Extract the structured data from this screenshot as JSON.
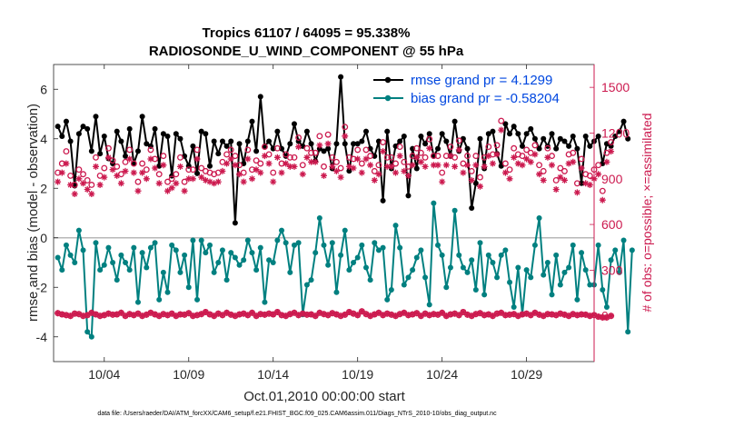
{
  "chart_data": {
    "type": "line",
    "title": "Tropics 61107 / 64095 = 95.338%",
    "subtitle": "RADIOSONDE_U_WIND_COMPONENT @ 55 hPa",
    "xlabel": "Oct.01,2010 00:00:00 start",
    "ylabel": "rmse and bias (model - observation)",
    "ylabel_right": "# of obs: o=possible; ×=assimilated",
    "footnote": "data file: /Users/raeder/DAI/ATM_forcXX/CAM6_setup/f.e21.FHIST_BGC.f09_025.CAM6assim.011/Diags_NTrS_2010-10/obs_diag_output.nc",
    "xlim": [
      1,
      33
    ],
    "ylim": [
      -5,
      7
    ],
    "ylim_right": [
      -300,
      1650
    ],
    "x_ticks": [
      4,
      9,
      14,
      19,
      24,
      29
    ],
    "x_tick_labels": [
      "10/04",
      "10/09",
      "10/14",
      "10/19",
      "10/24",
      "10/29"
    ],
    "y_ticks": [
      -4,
      -2,
      0,
      2,
      4,
      6
    ],
    "y_tick_labels": [
      "-4",
      "-2",
      "0",
      "2",
      "4",
      "6"
    ],
    "y_ticks_right": [
      0,
      300,
      600,
      900,
      1200,
      1500
    ],
    "y_tick_labels_right": [
      "0",
      "300",
      "600",
      "900",
      "1200",
      "1500"
    ],
    "x_start": 1.25,
    "x_step": 0.25,
    "legend": [
      {
        "name": "rmse grand pr = 4.1299",
        "color": "#000000"
      },
      {
        "name": "bias grand pr = -0.58204",
        "color": "#008080"
      }
    ],
    "series": [
      {
        "name": "rmse",
        "color": "#000000",
        "values": [
          4.5,
          4.1,
          4.7,
          3.9,
          2.1,
          4.2,
          4.5,
          4.4,
          3.5,
          4.9,
          3.4,
          4.1,
          3.2,
          3.0,
          4.3,
          3.9,
          3.3,
          4.4,
          3.0,
          3.5,
          4.9,
          3.8,
          3.7,
          4.4,
          2.9,
          4.2,
          4.1,
          2.5,
          4.2,
          4.0,
          3.3,
          2.9,
          3.7,
          2.6,
          4.3,
          4.2,
          2.9,
          3.9,
          3.4,
          3.9,
          3.7,
          3.9,
          0.6,
          3.8,
          3.0,
          3.9,
          4.7,
          3.5,
          5.7,
          3.7,
          3.9,
          3.6,
          4.3,
          3.6,
          3.3,
          3.8,
          4.6,
          3.9,
          3.7,
          4.3,
          3.8,
          3.1,
          3.6,
          3.5,
          3.6,
          2.8,
          3.8,
          6.5,
          3.8,
          2.7,
          3.8,
          3.8,
          3.9,
          4.3,
          3.6,
          3.3,
          3.9,
          1.5,
          4.3,
          2.8,
          3.7,
          3.9,
          4.1,
          1.7,
          3.6,
          2.8,
          4.1,
          3.8,
          4.2,
          3.3,
          3.6,
          4.2,
          3.9,
          3.3,
          4.7,
          3.5,
          4.0,
          3.6,
          1.2,
          2.2,
          4.0,
          2.8,
          4.2,
          4.3,
          3.4,
          2.9,
          4.6,
          4.2,
          4.5,
          4.2,
          3.7,
          4.2,
          4.4,
          4.0,
          3.6,
          4.0,
          3.7,
          4.2,
          3.6,
          4.0,
          3.9,
          3.7,
          4.1,
          3.6,
          2.2,
          4.1,
          3.7,
          3.9,
          4.1,
          3.0,
          3.8,
          3.7,
          4.1,
          4.3,
          4.7,
          4.0
        ]
      },
      {
        "name": "bias",
        "color": "#008080",
        "values": [
          -0.8,
          -1.3,
          -0.3,
          -0.7,
          -1.0,
          0.3,
          -0.5,
          -3.8,
          -4.0,
          -0.2,
          -1.3,
          -1.1,
          -0.4,
          -1.0,
          -1.7,
          -0.7,
          -1.0,
          -1.3,
          -0.4,
          -2.6,
          -0.6,
          -1.2,
          -0.4,
          -0.2,
          -2.5,
          -1.4,
          -2.2,
          -0.3,
          -0.5,
          -1.4,
          -0.7,
          -2.0,
          -0.1,
          -2.5,
          -0.1,
          -0.6,
          -0.3,
          -1.4,
          -1.0,
          -0.5,
          -1.7,
          -0.6,
          -0.8,
          -1.1,
          -0.9,
          -0.1,
          -0.6,
          -1.3,
          -0.4,
          -2.6,
          -0.9,
          -1.0,
          -0.1,
          0.3,
          -0.2,
          -1.4,
          -0.3,
          -0.2,
          -3.1,
          -1.9,
          -1.7,
          -0.6,
          0.8,
          -0.3,
          -1.1,
          -0.2,
          -2.2,
          -0.7,
          0.3,
          -1.3,
          -1.0,
          -0.8,
          -0.3,
          -1.2,
          -1.7,
          -0.2,
          -0.5,
          -0.4,
          -2.5,
          -2.1,
          0.5,
          -0.4,
          -1.9,
          -1.6,
          -1.3,
          -0.8,
          -0.5,
          -1.6,
          -2.7,
          1.4,
          -0.3,
          -0.7,
          -2.0,
          -1.2,
          1.1,
          -0.7,
          -1.2,
          -1.4,
          -0.9,
          -2.1,
          -0.2,
          -2.3,
          -0.7,
          -1.0,
          -1.6,
          -0.7,
          -0.5,
          -1.8,
          -2.8,
          -1.2,
          -3.1,
          -1.3,
          -1.6,
          -0.3,
          0.8,
          -1.5,
          -1.0,
          -2.3,
          -0.7,
          -1.9,
          -1.4,
          -1.2,
          -0.3,
          -2.5,
          -0.6,
          -1.3,
          -1.9,
          -1.9,
          -0.3,
          -2.1,
          -2.8,
          -0.9,
          -0.5,
          -1.4,
          -0.1,
          -3.8,
          -0.5
        ]
      },
      {
        "name": "obs possible",
        "color": "#cc1a4f",
        "marker": "o",
        "values": [
          940,
          1000,
          1080,
          920,
          860,
          960,
          930,
          890,
          860,
          1040,
          920,
          970,
          1100,
          1020,
          980,
          930,
          1010,
          1090,
          1000,
          880,
          1000,
          960,
          1090,
          1030,
          930,
          1050,
          880,
          900,
          930,
          1040,
          880,
          960,
          960,
          1090,
          970,
          950,
          940,
          930,
          940,
          1010,
          1060,
          1090,
          1050,
          990,
          940,
          1090,
          960,
          1020,
          1000,
          1110,
          1060,
          940,
          1100,
          1000,
          1060,
          1040,
          1040,
          1170,
          990,
          1100,
          1070,
          1070,
          1180,
          980,
          1190,
          1040,
          1010,
          970,
          1240,
          1040,
          1030,
          1090,
          1000,
          1090,
          1050,
          950,
          990,
          1140,
          1040,
          1040,
          1000,
          1110,
          1010,
          980,
          1050,
          1100,
          1070,
          1040,
          1160,
          1050,
          1050,
          940,
          1050,
          1110,
          1040,
          1150,
          1000,
          1050,
          950,
          1050,
          910,
          1040,
          1110,
          1060,
          1120,
          1280,
          1000,
          960,
          1100,
          1060,
          1050,
          1090,
          1070,
          1120,
          990,
          950,
          1100,
          1050,
          890,
          970,
          950,
          1060,
          1070,
          870,
          1030,
          930,
          920,
          960,
          990,
          820,
          1070,
          1140
        ]
      },
      {
        "name": "obs assimilated",
        "color": "#cc1a4f",
        "marker": "*",
        "values": [
          880,
          940,
          1000,
          860,
          800,
          900,
          870,
          830,
          800,
          980,
          860,
          910,
          1040,
          960,
          920,
          870,
          950,
          1030,
          940,
          820,
          940,
          900,
          1030,
          970,
          870,
          990,
          820,
          840,
          870,
          980,
          820,
          900,
          900,
          1030,
          910,
          890,
          880,
          870,
          880,
          950,
          1000,
          1030,
          990,
          930,
          880,
          1030,
          900,
          960,
          940,
          1050,
          1000,
          880,
          1040,
          940,
          1000,
          980,
          980,
          1110,
          930,
          1040,
          1010,
          1010,
          1120,
          920,
          1130,
          980,
          950,
          910,
          1180,
          980,
          970,
          1030,
          940,
          1030,
          990,
          890,
          930,
          1080,
          980,
          980,
          940,
          1050,
          950,
          920,
          990,
          1040,
          1010,
          980,
          1100,
          990,
          990,
          880,
          990,
          1050,
          980,
          1090,
          940,
          990,
          890,
          990,
          850,
          980,
          1050,
          1000,
          1060,
          1220,
          940,
          900,
          1040,
          1000,
          990,
          1030,
          1010,
          1060,
          930,
          890,
          1040,
          990,
          830,
          910,
          890,
          1000,
          1010,
          810,
          970,
          870,
          860,
          900,
          930,
          760,
          1010,
          1080
        ]
      },
      {
        "name": "obs bottom",
        "color": "#cc1a4f",
        "values": [
          18,
          10,
          5,
          0,
          15,
          12,
          0,
          5,
          20,
          10,
          0,
          5,
          15,
          8,
          10,
          20,
          0,
          12,
          5,
          15,
          0,
          8,
          20,
          10,
          0,
          12,
          5,
          15,
          0,
          10,
          8,
          18,
          0,
          5,
          12,
          25,
          10,
          0,
          15,
          5,
          20,
          8,
          0,
          10,
          15,
          5,
          20,
          0,
          12,
          8,
          15,
          10,
          25,
          5,
          0,
          12,
          20,
          5,
          15,
          8,
          10,
          0,
          20,
          12,
          5,
          18,
          10,
          0,
          8,
          25,
          15,
          5,
          30,
          12,
          0,
          10,
          20,
          5,
          15,
          8,
          0,
          12,
          20,
          5,
          10,
          18,
          0,
          15,
          5,
          12,
          8,
          20,
          0,
          10,
          15,
          5,
          25,
          8,
          0,
          12,
          18,
          5,
          10,
          0,
          15,
          20,
          5,
          8,
          12,
          0,
          10,
          15,
          5,
          20,
          8,
          0,
          12,
          10,
          5,
          15,
          8,
          0,
          12,
          5,
          10,
          8,
          0,
          5,
          -5,
          -10,
          -10,
          0
        ]
      }
    ]
  }
}
